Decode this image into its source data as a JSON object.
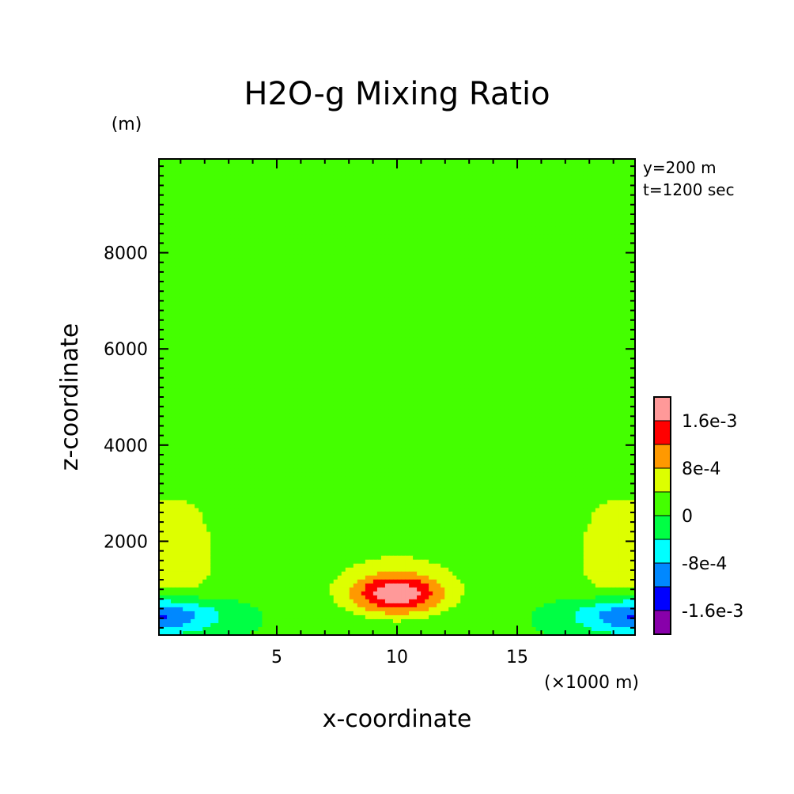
{
  "chart_data": {
    "type": "heatmap",
    "title": "H2O-g Mixing Ratio",
    "xlabel": "x-coordinate",
    "ylabel": "z-coordinate",
    "x_unit": "(×1000 m)",
    "y_unit": "(m)",
    "annotations": [
      "y=200 m",
      "t=1200 sec"
    ],
    "xlim": [
      0.1,
      19.9
    ],
    "ylim": [
      50,
      9950
    ],
    "x_ticks": [
      5,
      10,
      15
    ],
    "y_ticks": [
      2000,
      4000,
      6000,
      8000
    ],
    "colorbar": {
      "levels": [
        -0.002,
        -0.0016,
        -0.0012,
        -0.0008,
        -0.0004,
        0,
        0.0004,
        0.0008,
        0.0012,
        0.0016,
        0.002
      ],
      "colors": [
        "#8800aa",
        "#0000ff",
        "#0088ff",
        "#00ffff",
        "#00ff44",
        "#44ff00",
        "#ddff00",
        "#ff9900",
        "#ff0000",
        "#ff9999"
      ],
      "tick_labels": [
        "1.6e-3",
        "8e-4",
        "0",
        "-8e-4",
        "-1.6e-3"
      ],
      "tick_values": [
        0.0016,
        0.0008,
        0,
        -0.0008,
        -0.0016
      ]
    }
  }
}
